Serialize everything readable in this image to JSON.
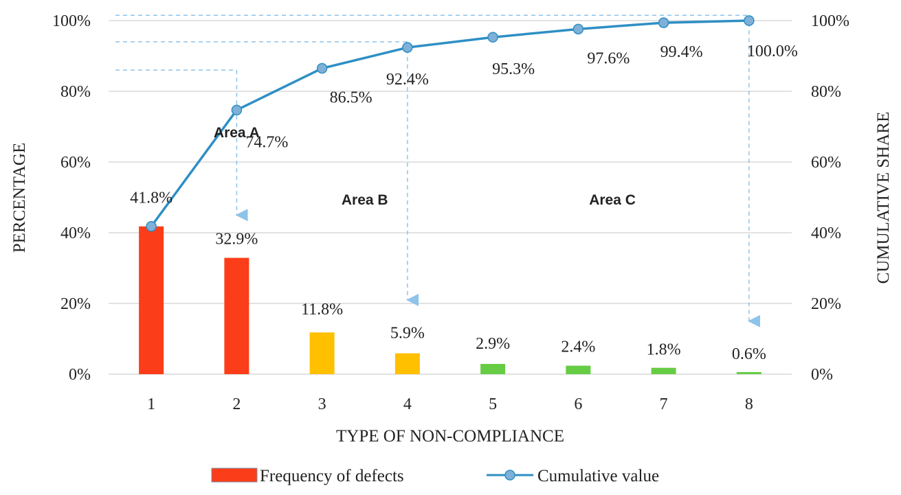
{
  "chart_data": {
    "type": "bar+line",
    "categories": [
      "1",
      "2",
      "3",
      "4",
      "5",
      "6",
      "7",
      "8"
    ],
    "series": [
      {
        "name": "Frequency of defects",
        "kind": "bar",
        "values": [
          41.8,
          32.9,
          11.8,
          5.9,
          2.9,
          2.4,
          1.8,
          0.6
        ],
        "labels": [
          "41.8%",
          "32.9%",
          "11.8%",
          "5.9%",
          "2.9%",
          "2.4%",
          "1.8%",
          "0.6%"
        ],
        "color_by_category": [
          "#fc3d19",
          "#fc3d19",
          "#ffc000",
          "#ffc000",
          "#66cc44",
          "#66cc44",
          "#66cc44",
          "#66cc44"
        ]
      },
      {
        "name": "Cumulative value",
        "kind": "line",
        "values": [
          41.8,
          74.7,
          86.5,
          92.4,
          95.3,
          97.6,
          99.4,
          100.0
        ],
        "labels": [
          "41.8%",
          "74.7%",
          "86.5%",
          "92.4%",
          "95.3%",
          "97.6%",
          "99.4%",
          "100.0%"
        ],
        "color": "#2e8fc4",
        "marker_color": "#7fb0d8"
      }
    ],
    "xlabel": "TYPE OF NON-COMPLIANCE",
    "ylabel": "PERCENTAGE",
    "y2label": "CUMULATIVE SHARE",
    "ylim": [
      0,
      100
    ],
    "yticks": [
      0,
      20,
      40,
      60,
      80,
      100
    ],
    "ytick_labels": [
      "0%",
      "20%",
      "40%",
      "60%",
      "80%",
      "100%"
    ],
    "grid": true,
    "legend": "bottom",
    "areas": [
      {
        "label": "Area A",
        "center": 1.5,
        "y": 67
      },
      {
        "label": "Area B",
        "center": 3.0,
        "y": 48
      },
      {
        "label": "Area C",
        "center": 5.9,
        "y": 48
      }
    ],
    "boundaries": [
      {
        "category_index": 1,
        "level": 86,
        "arrow_to": 45
      },
      {
        "category_index": 3,
        "level": 94,
        "arrow_to": 21
      },
      {
        "category_index": 7,
        "level": 101.5,
        "arrow_to": 15
      }
    ],
    "colors": {
      "grid": "#d9d9d9",
      "guide": "#8ec3ea"
    }
  }
}
